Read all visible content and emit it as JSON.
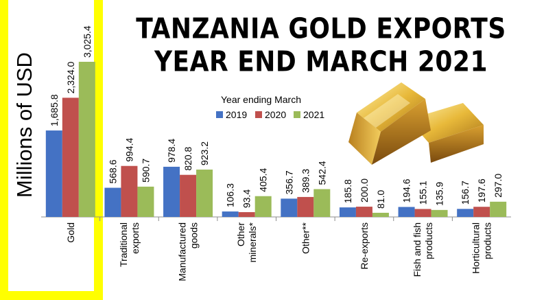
{
  "title": {
    "line1": "TANZANIA GOLD EXPORTS",
    "line2": "YEAR END MARCH 2021"
  },
  "ylabel": "Millions of USD",
  "legend": {
    "title": "Year ending  March",
    "items": [
      {
        "label": "2019",
        "color": "#4472c4"
      },
      {
        "label": "2020",
        "color": "#c0504d"
      },
      {
        "label": "2021",
        "color": "#9bbb59"
      }
    ]
  },
  "decoration": {
    "icon": "gold-bars-icon",
    "highlight_color": "#ffff00"
  },
  "chart_data": {
    "type": "bar",
    "title": "TANZANIA GOLD EXPORTS YEAR END MARCH 2021",
    "ylabel": "Millions of USD",
    "categories": [
      [
        "Gold"
      ],
      [
        "Traditional",
        "exports"
      ],
      [
        "Manufactured",
        "goods"
      ],
      [
        "Other",
        "minerals*"
      ],
      [
        "Other**"
      ],
      [
        "Re-exports"
      ],
      [
        "Fish and fish",
        "products"
      ],
      [
        "Horticultural",
        "products"
      ]
    ],
    "series": [
      {
        "name": "2019",
        "color": "#4472c4",
        "values": [
          1685.8,
          568.6,
          978.4,
          106.3,
          356.7,
          185.8,
          194.6,
          156.7
        ],
        "labels": [
          "1,685.8",
          "568.6",
          "978.4",
          "106.3",
          "356.7",
          "185.8",
          "194.6",
          "156.7"
        ]
      },
      {
        "name": "2020",
        "color": "#c0504d",
        "values": [
          2324.0,
          994.4,
          820.8,
          93.4,
          389.3,
          200.0,
          155.1,
          197.6
        ],
        "labels": [
          "2,324.0",
          "994.4",
          "820.8",
          "93.4",
          "389.3",
          "200.0",
          "155.1",
          "197.6"
        ]
      },
      {
        "name": "2021",
        "color": "#9bbb59",
        "values": [
          3025.4,
          590.7,
          923.2,
          405.4,
          542.4,
          81.0,
          135.9,
          297.0
        ],
        "labels": [
          "3,025.4",
          "590.7",
          "923.2",
          "405.4",
          "542.4",
          "81.0",
          "135.9",
          "297.0"
        ]
      }
    ],
    "ylim": [
      0,
      3025.4
    ],
    "grid": false,
    "legend_position": "top-center"
  }
}
